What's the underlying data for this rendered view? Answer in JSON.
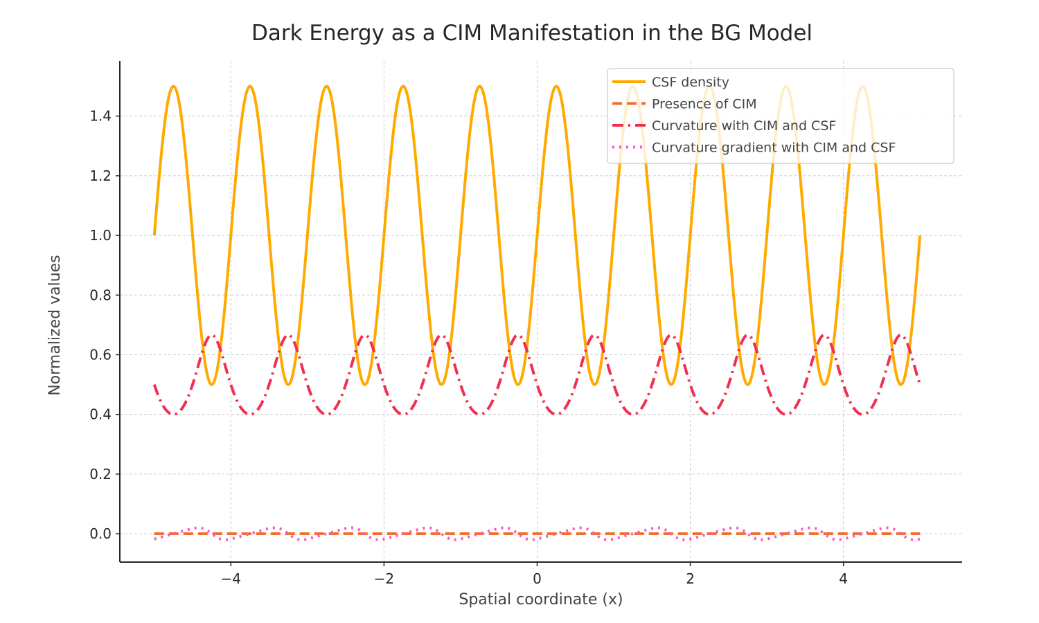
{
  "chart_data": {
    "type": "line",
    "title": "Dark Energy as a CIM Manifestation in the BG Model",
    "xlabel": "Spatial coordinate  (x)",
    "ylabel": "Normalized values",
    "xlim": [
      -5.45,
      5.55
    ],
    "ylim": [
      -0.095,
      1.585
    ],
    "x_range": [
      -5,
      5
    ],
    "num_points": 1000,
    "grid": true,
    "legend_position": "top-right",
    "xticks": [
      -4,
      -2,
      0,
      2,
      4
    ],
    "xtick_labels": [
      "−4",
      "−2",
      "0",
      "2",
      "4"
    ],
    "yticks": [
      0.0,
      0.2,
      0.4,
      0.6,
      0.8,
      1.0,
      1.2,
      1.4
    ],
    "ytick_labels": [
      "0.0",
      "0.2",
      "0.4",
      "0.6",
      "0.8",
      "1.0",
      "1.2",
      "1.4"
    ],
    "series": [
      {
        "name": "CSF density",
        "formula": "1 + 0.5*sin(2*pi*x)",
        "color": "#FFAA00",
        "style": "solid",
        "key_values": {
          "max": 1.5,
          "min": 0.5,
          "start": 1.0,
          "end": 1.0
        }
      },
      {
        "name": "Presence of CIM",
        "formula": "0",
        "color": "#F07030",
        "style": "dashed",
        "key_values": {
          "constant": 0.0
        }
      },
      {
        "name": "Curvature with CIM and CSF",
        "formula": "1 / (1 + CSF density)",
        "color": "#F03050",
        "style": "dashdot",
        "key_values": {
          "max": 0.667,
          "min": 0.4,
          "start": 0.5,
          "end": 0.5
        }
      },
      {
        "name": "Curvature gradient with CIM and CSF",
        "formula": "numerical gradient of curvature per sample step",
        "color": "#FF55CC",
        "style": "dotted",
        "key_values": {
          "max": 0.02,
          "min": -0.02
        }
      }
    ]
  }
}
